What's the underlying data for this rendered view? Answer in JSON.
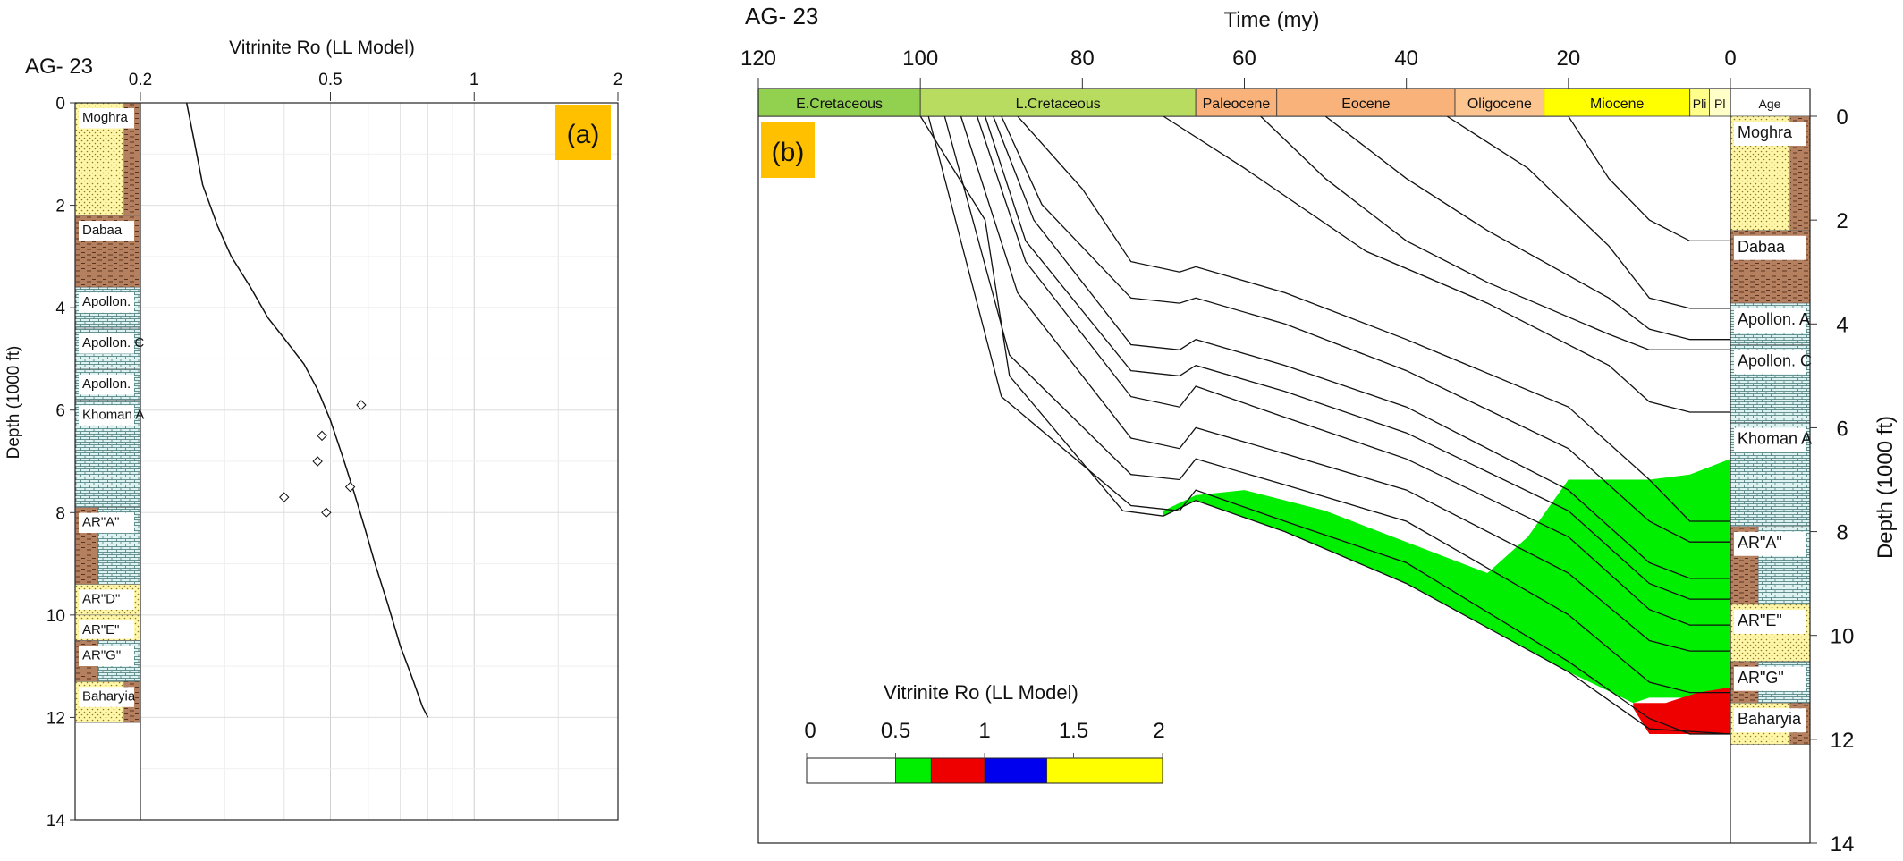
{
  "chart_data": [
    {
      "panel": "a",
      "type": "line",
      "well_label": "AG- 23",
      "panel_label": "(a)",
      "xlabel": "Vitrinite Ro (LL Model)",
      "ylabel": "Depth (1000 ft)",
      "x_scale": "log",
      "xlim": [
        0.2,
        2
      ],
      "ylim": [
        0,
        14
      ],
      "x_ticks": [
        "0.2",
        "0.5",
        "1",
        "2"
      ],
      "y_ticks": [
        "0",
        "2",
        "4",
        "6",
        "8",
        "10",
        "12",
        "14"
      ],
      "series": [
        {
          "kind": "line",
          "x": [
            0.25,
            0.26,
            0.27,
            0.29,
            0.31,
            0.34,
            0.37,
            0.4,
            0.44,
            0.47,
            0.5,
            0.53,
            0.56,
            0.59,
            0.62,
            0.66,
            0.7,
            0.74,
            0.78,
            0.8
          ],
          "y": [
            0.0,
            0.8,
            1.6,
            2.4,
            3.0,
            3.6,
            4.2,
            4.6,
            5.1,
            5.6,
            6.2,
            6.9,
            7.6,
            8.3,
            9.0,
            9.8,
            10.6,
            11.2,
            11.8,
            12.0
          ]
        },
        {
          "kind": "scatter",
          "x": [
            0.58,
            0.48,
            0.47,
            0.55,
            0.4,
            0.49
          ],
          "y": [
            5.9,
            6.5,
            7.0,
            7.5,
            7.7,
            8.0
          ]
        }
      ],
      "formations": [
        {
          "name": "Moghra",
          "top": 0,
          "base": 2.2,
          "lith": "sand-shale"
        },
        {
          "name": "Dabaa",
          "top": 2.2,
          "base": 3.6,
          "lith": "shale"
        },
        {
          "name": "Apollon.",
          "top": 3.6,
          "base": 4.4,
          "lith": "lime"
        },
        {
          "name": "Apollon. C",
          "top": 4.4,
          "base": 5.2,
          "lith": "lime"
        },
        {
          "name": "Apollon.",
          "top": 5.2,
          "base": 5.8,
          "lith": "lime"
        },
        {
          "name": "Khoman A",
          "top": 5.8,
          "base": 7.9,
          "lith": "lime"
        },
        {
          "name": "AR\"A\"",
          "top": 7.9,
          "base": 9.4,
          "lith": "mixed"
        },
        {
          "name": "AR\"D\"",
          "top": 9.4,
          "base": 10.0,
          "lith": "sand"
        },
        {
          "name": "AR\"E\"",
          "top": 10.0,
          "base": 10.5,
          "lith": "sand"
        },
        {
          "name": "AR\"G\"",
          "top": 10.5,
          "base": 11.3,
          "lith": "mixed"
        },
        {
          "name": "Baharyia",
          "top": 11.3,
          "base": 12.1,
          "lith": "sand-shale"
        }
      ]
    },
    {
      "panel": "b",
      "type": "area",
      "well_label": "AG- 23",
      "panel_label": "(b)",
      "xlabel": "Time (my)",
      "ylabel": "Depth (1000 ft)",
      "xlim": [
        120,
        0
      ],
      "ylim": [
        0,
        14
      ],
      "x_ticks": [
        "120",
        "100",
        "80",
        "60",
        "40",
        "20",
        "0"
      ],
      "y_ticks": [
        "0",
        "2",
        "4",
        "6",
        "8",
        "10",
        "12",
        "14"
      ],
      "ages": [
        {
          "name": "E.Cretaceous",
          "start": 120,
          "end": 100,
          "color": "#92d050"
        },
        {
          "name": "L.Cretaceous",
          "start": 100,
          "end": 66,
          "color": "#b7dc60"
        },
        {
          "name": "Paleocene",
          "start": 66,
          "end": 56,
          "color": "#f9b27a"
        },
        {
          "name": "Eocene",
          "start": 56,
          "end": 34,
          "color": "#f9b27a"
        },
        {
          "name": "Oligocene",
          "start": 34,
          "end": 23,
          "color": "#fcc590"
        },
        {
          "name": "Miocene",
          "start": 23,
          "end": 5,
          "color": "#ffff00"
        },
        {
          "name": "Pli",
          "start": 5,
          "end": 2.6,
          "color": "#ffff8a"
        },
        {
          "name": "Pl",
          "start": 2.6,
          "end": 0,
          "color": "#ffffc8"
        }
      ],
      "age_column_label": "Age",
      "burial_lines": [
        [
          [
            120,
            0
          ],
          [
            20,
            0
          ],
          [
            15,
            1.2
          ],
          [
            10,
            2.0
          ],
          [
            5,
            2.4
          ],
          [
            0,
            2.4
          ]
        ],
        [
          [
            35,
            0
          ],
          [
            25,
            1.0
          ],
          [
            15,
            2.5
          ],
          [
            10,
            3.5
          ],
          [
            5,
            3.7
          ],
          [
            0,
            3.7
          ]
        ],
        [
          [
            50,
            0
          ],
          [
            40,
            1.2
          ],
          [
            30,
            2.2
          ],
          [
            15,
            3.5
          ],
          [
            10,
            4.1
          ],
          [
            5,
            4.3
          ],
          [
            0,
            4.3
          ]
        ],
        [
          [
            58,
            0
          ],
          [
            50,
            1.2
          ],
          [
            40,
            2.4
          ],
          [
            30,
            3.2
          ],
          [
            15,
            4.2
          ],
          [
            10,
            4.5
          ],
          [
            0,
            4.5
          ]
        ],
        [
          [
            70,
            0
          ],
          [
            60,
            1.0
          ],
          [
            45,
            2.6
          ],
          [
            30,
            3.6
          ],
          [
            15,
            4.8
          ],
          [
            10,
            5.5
          ],
          [
            5,
            5.7
          ],
          [
            0,
            5.7
          ]
        ],
        [
          [
            88,
            0
          ],
          [
            80,
            1.4
          ],
          [
            74,
            2.8
          ],
          [
            68,
            3.0
          ],
          [
            66,
            2.9
          ],
          [
            55,
            3.4
          ],
          [
            40,
            4.3
          ],
          [
            20,
            5.6
          ],
          [
            10,
            7.0
          ],
          [
            5,
            7.8
          ],
          [
            0,
            7.8
          ]
        ],
        [
          [
            90,
            0
          ],
          [
            85,
            1.7
          ],
          [
            74,
            3.5
          ],
          [
            68,
            3.6
          ],
          [
            66,
            3.5
          ],
          [
            55,
            4.0
          ],
          [
            40,
            4.9
          ],
          [
            20,
            6.4
          ],
          [
            10,
            7.8
          ],
          [
            5,
            8.2
          ],
          [
            0,
            8.2
          ]
        ],
        [
          [
            91,
            0
          ],
          [
            86,
            2.0
          ],
          [
            74,
            4.4
          ],
          [
            68,
            4.5
          ],
          [
            66,
            4.3
          ],
          [
            55,
            4.8
          ],
          [
            40,
            5.6
          ],
          [
            20,
            7.2
          ],
          [
            10,
            8.6
          ],
          [
            5,
            8.9
          ],
          [
            0,
            8.9
          ]
        ],
        [
          [
            92,
            0
          ],
          [
            87,
            2.4
          ],
          [
            74,
            4.9
          ],
          [
            68,
            5.0
          ],
          [
            66,
            4.8
          ],
          [
            55,
            5.3
          ],
          [
            40,
            6.1
          ],
          [
            20,
            7.6
          ],
          [
            10,
            9.0
          ],
          [
            5,
            9.3
          ],
          [
            0,
            9.3
          ]
        ],
        [
          [
            93,
            0
          ],
          [
            87,
            2.8
          ],
          [
            74,
            5.4
          ],
          [
            68,
            5.6
          ],
          [
            66,
            5.2
          ],
          [
            55,
            5.8
          ],
          [
            40,
            6.6
          ],
          [
            20,
            8.1
          ],
          [
            10,
            9.5
          ],
          [
            5,
            9.8
          ],
          [
            0,
            9.8
          ]
        ],
        [
          [
            95,
            0
          ],
          [
            88,
            3.4
          ],
          [
            74,
            6.2
          ],
          [
            68,
            6.4
          ],
          [
            66,
            6.0
          ],
          [
            55,
            6.5
          ],
          [
            40,
            7.2
          ],
          [
            20,
            8.8
          ],
          [
            10,
            10.1
          ],
          [
            5,
            10.3
          ],
          [
            0,
            10.3
          ]
        ],
        [
          [
            97,
            0
          ],
          [
            89,
            4.6
          ],
          [
            74,
            6.9
          ],
          [
            68,
            7.0
          ],
          [
            66,
            6.6
          ],
          [
            55,
            7.1
          ],
          [
            40,
            7.8
          ],
          [
            20,
            9.6
          ],
          [
            10,
            10.9
          ],
          [
            5,
            11.1
          ],
          [
            0,
            11.1
          ]
        ],
        [
          [
            99,
            0
          ],
          [
            90,
            5.4
          ],
          [
            74,
            7.5
          ],
          [
            68,
            7.6
          ],
          [
            66,
            7.2
          ],
          [
            55,
            7.8
          ],
          [
            40,
            8.6
          ],
          [
            20,
            10.5
          ],
          [
            10,
            11.6
          ],
          [
            5,
            11.9
          ],
          [
            0,
            11.9
          ]
        ],
        [
          [
            100,
            0
          ],
          [
            92,
            2.0
          ],
          [
            89,
            5.0
          ],
          [
            75,
            7.6
          ],
          [
            70,
            7.7
          ],
          [
            66,
            7.4
          ],
          [
            55,
            8.0
          ],
          [
            40,
            9.0
          ],
          [
            20,
            10.7
          ],
          [
            10,
            11.8
          ],
          [
            0,
            11.9
          ]
        ]
      ],
      "maturity_zones": [
        {
          "range": "0.5-0.7",
          "color": "#00ee00",
          "polygon": [
            [
              70,
              7.6
            ],
            [
              66,
              7.3
            ],
            [
              60,
              7.2
            ],
            [
              50,
              7.6
            ],
            [
              40,
              8.2
            ],
            [
              30,
              8.8
            ],
            [
              25,
              8.1
            ],
            [
              20,
              7.0
            ],
            [
              15,
              7.0
            ],
            [
              10,
              7.0
            ],
            [
              5,
              6.9
            ],
            [
              0,
              6.6
            ],
            [
              0,
              11.1
            ],
            [
              5,
              11.2
            ],
            [
              10,
              11.2
            ],
            [
              12,
              11.3
            ],
            [
              20,
              10.7
            ],
            [
              40,
              9.0
            ],
            [
              55,
              8.0
            ],
            [
              66,
              7.4
            ],
            [
              70,
              7.7
            ]
          ]
        },
        {
          "range": "0.7-1.0",
          "color": "#ee0000",
          "polygon": [
            [
              12,
              11.3
            ],
            [
              8,
              11.3
            ],
            [
              4,
              11.1
            ],
            [
              0,
              11.0
            ],
            [
              0,
              11.9
            ],
            [
              10,
              11.9
            ],
            [
              12,
              11.4
            ]
          ]
        }
      ],
      "legend": {
        "title": "Vitrinite Ro (LL Model)",
        "ticks": [
          "0",
          "0.5",
          "1",
          "1.5",
          "2"
        ],
        "stops": [
          {
            "from": 0,
            "to": 0.5,
            "color": "#ffffff"
          },
          {
            "from": 0.5,
            "to": 0.7,
            "color": "#00ee00"
          },
          {
            "from": 0.7,
            "to": 1.0,
            "color": "#ee0000"
          },
          {
            "from": 1.0,
            "to": 1.35,
            "color": "#0000ee"
          },
          {
            "from": 1.35,
            "to": 2.0,
            "color": "#ffff00"
          }
        ]
      },
      "formations": [
        {
          "name": "Moghra",
          "top": 0,
          "base": 2.2,
          "lith": "sand-shale"
        },
        {
          "name": "Dabaa",
          "top": 2.2,
          "base": 3.6,
          "lith": "shale"
        },
        {
          "name": "Apollon. A",
          "top": 3.6,
          "base": 4.4,
          "lith": "lime"
        },
        {
          "name": "Apollon. C",
          "top": 4.4,
          "base": 5.9,
          "lith": "lime"
        },
        {
          "name": "Khoman A",
          "top": 5.9,
          "base": 7.9,
          "lith": "lime"
        },
        {
          "name": "AR\"A\"",
          "top": 7.9,
          "base": 9.4,
          "lith": "mixed"
        },
        {
          "name": "AR\"E\"",
          "top": 9.4,
          "base": 10.5,
          "lith": "sand"
        },
        {
          "name": "AR\"G\"",
          "top": 10.5,
          "base": 11.3,
          "lith": "mixed"
        },
        {
          "name": "Baharyia",
          "top": 11.3,
          "base": 12.1,
          "lith": "sand-shale"
        }
      ]
    }
  ]
}
